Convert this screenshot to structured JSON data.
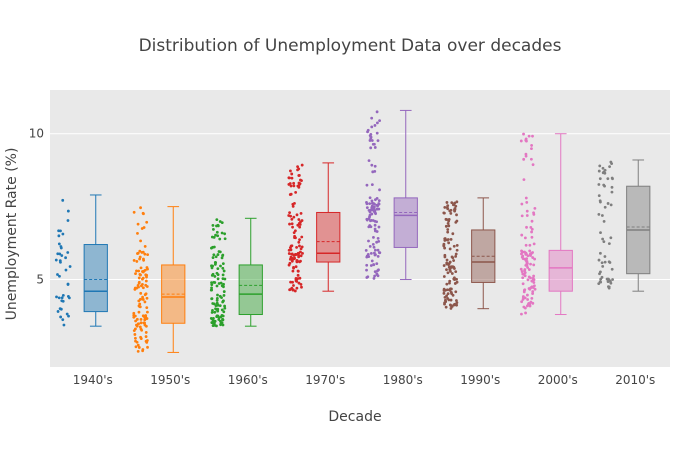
{
  "chart_data": {
    "type": "box",
    "title": "Distribution of Unemployment Data over decades",
    "xlabel": "Decade",
    "ylabel": "Unemployment Rate (%)",
    "ylim": [
      2,
      11.5
    ],
    "yticks": [
      5,
      10
    ],
    "grid": true,
    "legend": "none",
    "boxpoints": "all",
    "boxmean": true,
    "plot_bg": "#e9e9e9",
    "series": [
      {
        "category": "1940's",
        "color": "#1f77b4",
        "min": 3.4,
        "q1": 3.9,
        "median": 4.6,
        "mean": 5.0,
        "q3": 6.2,
        "max": 7.9,
        "n": 40
      },
      {
        "category": "1950's",
        "color": "#ff7f0e",
        "min": 2.5,
        "q1": 3.5,
        "median": 4.4,
        "mean": 4.5,
        "q3": 5.5,
        "max": 7.5,
        "n": 120
      },
      {
        "category": "1960's",
        "color": "#2ca02c",
        "min": 3.4,
        "q1": 3.8,
        "median": 4.5,
        "mean": 4.8,
        "q3": 5.5,
        "max": 7.1,
        "n": 120
      },
      {
        "category": "1970's",
        "color": "#d62728",
        "min": 4.6,
        "q1": 5.6,
        "median": 5.9,
        "mean": 6.3,
        "q3": 7.3,
        "max": 9.0,
        "n": 120
      },
      {
        "category": "1980's",
        "color": "#9467bd",
        "min": 5.0,
        "q1": 6.1,
        "median": 7.2,
        "mean": 7.3,
        "q3": 7.8,
        "max": 10.8,
        "n": 120
      },
      {
        "category": "1990's",
        "color": "#8c564b",
        "min": 4.0,
        "q1": 4.9,
        "median": 5.6,
        "mean": 5.8,
        "q3": 6.7,
        "max": 7.8,
        "n": 120
      },
      {
        "category": "2000's",
        "color": "#e377c2",
        "min": 3.8,
        "q1": 4.6,
        "median": 5.4,
        "mean": 5.4,
        "q3": 6.0,
        "max": 10.0,
        "n": 120
      },
      {
        "category": "2010's",
        "color": "#7f7f7f",
        "min": 4.6,
        "q1": 5.2,
        "median": 6.7,
        "mean": 6.8,
        "q3": 8.2,
        "max": 9.1,
        "n": 60
      }
    ]
  }
}
